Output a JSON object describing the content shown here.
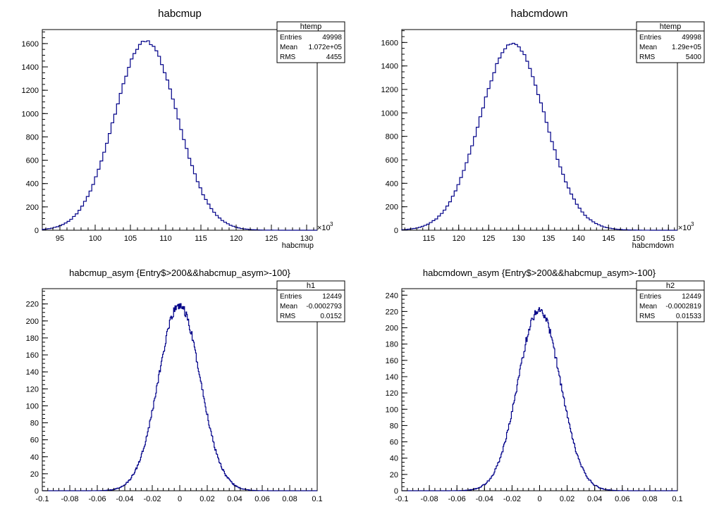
{
  "chart_data": [
    {
      "type": "histogram",
      "title": "habcmup",
      "xlabel": "habcmup",
      "x_multiplier_label": "×10",
      "x_multiplier_exp": "3",
      "xlim": [
        92.5,
        131.5
      ],
      "ylim": [
        0,
        1720
      ],
      "x_ticks": [
        95,
        100,
        105,
        110,
        115,
        120,
        125,
        130
      ],
      "y_ticks": [
        0,
        200,
        400,
        600,
        800,
        1000,
        1200,
        1400,
        1600
      ],
      "gauss": {
        "mean": 107.2,
        "sigma": 4.455,
        "amp": 1620
      },
      "stats": {
        "name": "htemp",
        "entries_label": "Entries",
        "entries": "49998",
        "mean_label": "Mean",
        "mean": "1.072e+05",
        "rms_label": "RMS",
        "rms": "4455"
      }
    },
    {
      "type": "histogram",
      "title": "habcmdown",
      "xlabel": "habcmdown",
      "x_multiplier_label": "×10",
      "x_multiplier_exp": "3",
      "xlim": [
        110.5,
        156.5
      ],
      "ylim": [
        0,
        1710
      ],
      "x_ticks": [
        115,
        120,
        125,
        130,
        135,
        140,
        145,
        150,
        155
      ],
      "y_ticks": [
        0,
        200,
        400,
        600,
        800,
        1000,
        1200,
        1400,
        1600
      ],
      "gauss": {
        "mean": 129.0,
        "sigma": 5.4,
        "amp": 1590
      },
      "stats": {
        "name": "htemp",
        "entries_label": "Entries",
        "entries": "49998",
        "mean_label": "Mean",
        "mean": "1.29e+05",
        "rms_label": "RMS",
        "rms": "5400"
      }
    },
    {
      "type": "histogram",
      "title": "habcmup_asym {Entry$>200&&habcmup_asym>-100}",
      "xlabel": "",
      "xlim": [
        -0.1,
        0.1
      ],
      "ylim": [
        0,
        238
      ],
      "x_ticks": [
        -0.1,
        -0.08,
        -0.06,
        -0.04,
        -0.02,
        0,
        0.02,
        0.04,
        0.06,
        0.08,
        0.1
      ],
      "y_ticks": [
        0,
        20,
        40,
        60,
        80,
        100,
        120,
        140,
        160,
        180,
        200,
        220
      ],
      "gauss": {
        "mean": -0.0002793,
        "sigma": 0.0152,
        "amp": 218
      },
      "stats": {
        "name": "h1",
        "entries_label": "Entries",
        "entries": "12449",
        "mean_label": "Mean",
        "mean": "-0.0002793",
        "rms_label": "RMS",
        "rms": "0.0152"
      }
    },
    {
      "type": "histogram",
      "title": "habcmdown_asym {Entry$>200&&habcmup_asym>-100}",
      "xlabel": "",
      "xlim": [
        -0.1,
        0.1
      ],
      "ylim": [
        0,
        248
      ],
      "x_ticks": [
        -0.1,
        -0.08,
        -0.06,
        -0.04,
        -0.02,
        0,
        0.02,
        0.04,
        0.06,
        0.08,
        0.1
      ],
      "y_ticks": [
        0,
        20,
        40,
        60,
        80,
        100,
        120,
        140,
        160,
        180,
        200,
        220,
        240
      ],
      "gauss": {
        "mean": -0.0002819,
        "sigma": 0.01533,
        "amp": 222
      },
      "stats": {
        "name": "h2",
        "entries_label": "Entries",
        "entries": "12449",
        "mean_label": "Mean",
        "mean": "-0.0002819",
        "rms_label": "RMS",
        "rms": "0.01533"
      }
    }
  ],
  "colors": {
    "line": "#000088",
    "axis": "#000000",
    "background": "#ffffff"
  }
}
